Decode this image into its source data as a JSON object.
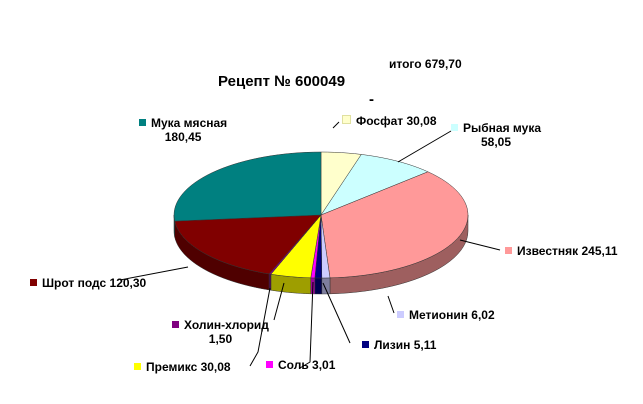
{
  "chart_data": {
    "type": "pie",
    "title": "Рецепт № 600049",
    "title_separator": "-",
    "total_label": "итого 679,70",
    "three_d": true,
    "slices": [
      {
        "name": "Фосфат",
        "value": 30.08,
        "label": "Фосфат 30,08",
        "color": "#ffffcc"
      },
      {
        "name": "Рыбная мука",
        "value": 58.05,
        "label": "Рыбная мука\n58,05",
        "color": "#ccffff"
      },
      {
        "name": "Известняк",
        "value": 245.11,
        "label": "Известняк 245,11",
        "color": "#ff9999"
      },
      {
        "name": "Метионин",
        "value": 6.02,
        "label": "Метионин 6,02",
        "color": "#ccccff"
      },
      {
        "name": "Лизин",
        "value": 5.11,
        "label": "Лизин 5,11",
        "color": "#000080"
      },
      {
        "name": "Соль",
        "value": 3.01,
        "label": "Соль 3,01",
        "color": "#ff00ff"
      },
      {
        "name": "Премикс",
        "value": 30.08,
        "label": "Премикс 30,08",
        "color": "#ffff00"
      },
      {
        "name": "Холин-хлорид",
        "value": 1.5,
        "label": "Холин-хлорид\n1,50",
        "color": "#800080"
      },
      {
        "name": "Шрот подс",
        "value": 120.3,
        "label": "Шрот подс 120,30",
        "color": "#800000"
      },
      {
        "name": "Мука мясная",
        "value": 180.45,
        "label": "Мука мясная\n180,45",
        "color": "#008080"
      }
    ]
  }
}
